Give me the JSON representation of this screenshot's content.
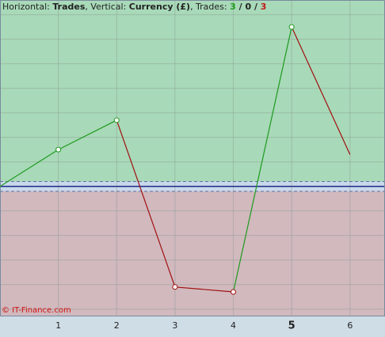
{
  "chart_data": {
    "type": "line",
    "title_parts": [
      {
        "text": "Horizontal: ",
        "bold": false,
        "color": "#222222"
      },
      {
        "text": "Trades",
        "bold": true,
        "color": "#222222"
      },
      {
        "text": ", Vertical: ",
        "bold": false,
        "color": "#222222"
      },
      {
        "text": "Currency (£)",
        "bold": true,
        "color": "#222222"
      },
      {
        "text": ", Trades: ",
        "bold": false,
        "color": "#222222"
      },
      {
        "text": "3",
        "bold": true,
        "color": "#1e9a1e"
      },
      {
        "text": " / ",
        "bold": true,
        "color": "#222222"
      },
      {
        "text": "0",
        "bold": true,
        "color": "#222222"
      },
      {
        "text": " / ",
        "bold": true,
        "color": "#222222"
      },
      {
        "text": "3",
        "bold": true,
        "color": "#c01818"
      }
    ],
    "watermark": "© IT-Finance.com",
    "x": [
      0,
      1,
      2,
      3,
      4,
      5,
      6
    ],
    "values": [
      0,
      1.5,
      2.7,
      -4.1,
      -4.3,
      6.5,
      1.3
    ],
    "xlim": [
      0,
      6.6
    ],
    "xticks": [
      1,
      2,
      3,
      4,
      5,
      6
    ],
    "bold_xtick": 5,
    "ylim": [
      -5.3,
      7.6
    ],
    "yticks": [
      -5,
      -4,
      -3,
      -2,
      -1,
      1,
      2,
      3,
      4,
      5,
      6,
      7
    ],
    "band": [
      -0.2,
      0.2
    ],
    "grid": true,
    "rise_color": "#1e9a1e",
    "fall_color": "#a01010",
    "gain_area_color": "#a8d9b8",
    "loss_area_color": "#d1b9be",
    "band_color": "#c9d9ec"
  }
}
